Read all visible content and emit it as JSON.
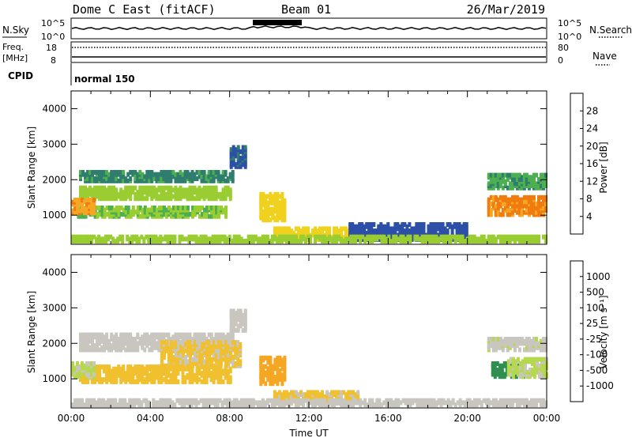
{
  "header": {
    "station": "Dome C East (fitACF)",
    "beam": "Beam 01",
    "date": "26/Mar/2019"
  },
  "top_panels": {
    "nsky_label": "N.Sky",
    "nsky_ticks": [
      "10^5",
      "10^0"
    ],
    "nsearch_label": "N.Search",
    "nsearch_ticks": [
      "10^5",
      "10^0"
    ],
    "freq_label_1": "Freq.",
    "freq_label_2": "[MHz]",
    "freq_ticks": [
      "18",
      "8"
    ],
    "nave_label": "Nave",
    "nave_ticks": [
      "80",
      "0"
    ],
    "cpid_label": "CPID",
    "cpid_value": "normal 150"
  },
  "colors": {
    "power_scale": [
      "#0a14e6",
      "#2c4fa8",
      "#2e7d6e",
      "#4caf50",
      "#9acd32",
      "#f0d21e",
      "#f5a623",
      "#f07b0f",
      "#e8401a",
      "#e3000b"
    ],
    "velocity_scale": [
      "#e3000b",
      "#e8401a",
      "#f07b0f",
      "#f5a623",
      "#f0c02e",
      "#c9c6bf",
      "#b5d84e",
      "#6cc24a",
      "#2e8f4e",
      "#2c5faa",
      "#1a2bd0"
    ]
  },
  "chart_data": [
    {
      "type": "heatmap",
      "name": "power",
      "xlabel": "",
      "ylabel": "Slant Range [km]",
      "xlim": [
        0,
        24
      ],
      "ylim": [
        180,
        4500
      ],
      "yticks": [
        "1000",
        "2000",
        "3000",
        "4000"
      ],
      "colorbar_label": "Power [dB]",
      "colorbar_ticks": [
        "4",
        "8",
        "12",
        "16",
        "20",
        "24",
        "28"
      ],
      "colorbar_range": [
        0,
        32
      ],
      "features": [
        {
          "t0": 0.4,
          "t1": 8.2,
          "r0": 1900,
          "r1": 2200,
          "v": 9
        },
        {
          "t0": 0.4,
          "t1": 8.0,
          "r0": 1400,
          "r1": 1750,
          "v": 14
        },
        {
          "t0": 0.3,
          "t1": 7.8,
          "r0": 900,
          "r1": 1200,
          "v": 13
        },
        {
          "t0": 0.0,
          "t1": 1.2,
          "r0": 1000,
          "r1": 1400,
          "v": 22
        },
        {
          "t0": 8.0,
          "t1": 8.8,
          "r0": 2300,
          "r1": 2900,
          "v": 6
        },
        {
          "t0": 9.5,
          "t1": 10.8,
          "r0": 800,
          "r1": 1550,
          "v": 18
        },
        {
          "t0": 10.2,
          "t1": 14.5,
          "r0": 250,
          "r1": 600,
          "v": 17
        },
        {
          "t0": 14.0,
          "t1": 20.0,
          "r0": 250,
          "r1": 700,
          "v": 5
        },
        {
          "t0": 21.0,
          "t1": 24.0,
          "r0": 1700,
          "r1": 2100,
          "v": 10
        },
        {
          "t0": 21.0,
          "t1": 24.0,
          "r0": 950,
          "r1": 1450,
          "v": 23
        },
        {
          "t0": 0.0,
          "t1": 24.0,
          "r0": 200,
          "r1": 330,
          "v": 15
        }
      ]
    },
    {
      "type": "heatmap",
      "name": "velocity",
      "xlabel": "Time UT",
      "ylabel": "Slant Range [km]",
      "xlim": [
        0,
        24
      ],
      "ylim": [
        180,
        4500
      ],
      "xticks": [
        "00:00",
        "04:00",
        "08:00",
        "12:00",
        "16:00",
        "20:00",
        "00:00"
      ],
      "yticks": [
        "1000",
        "2000",
        "3000",
        "4000"
      ],
      "colorbar_label": "Velocity [m s⁻¹]",
      "colorbar_ticks": [
        "-1000",
        "-500",
        "-100",
        "-25",
        "25",
        "100",
        "500",
        "1000"
      ],
      "colorbar_range": [
        -1250,
        1250
      ],
      "features": [
        {
          "t0": 0.4,
          "t1": 8.2,
          "r0": 1750,
          "r1": 2200,
          "v": 0
        },
        {
          "t0": 4.5,
          "t1": 8.5,
          "r0": 1300,
          "r1": 2000,
          "v": -150
        },
        {
          "t0": 0.4,
          "t1": 8.0,
          "r0": 850,
          "r1": 1300,
          "v": -200
        },
        {
          "t0": 0.0,
          "t1": 1.2,
          "r0": 1000,
          "r1": 1400,
          "v": 150
        },
        {
          "t0": 8.0,
          "t1": 8.8,
          "r0": 2300,
          "r1": 2900,
          "v": 0
        },
        {
          "t0": 9.5,
          "t1": 10.8,
          "r0": 800,
          "r1": 1550,
          "v": -450
        },
        {
          "t0": 10.2,
          "t1": 14.5,
          "r0": 250,
          "r1": 600,
          "v": -150
        },
        {
          "t0": 21.0,
          "t1": 24.0,
          "r0": 1750,
          "r1": 2100,
          "v": 60
        },
        {
          "t0": 21.2,
          "t1": 22.8,
          "r0": 1000,
          "r1": 1400,
          "v": 700
        },
        {
          "t0": 22.0,
          "t1": 24.0,
          "r0": 1000,
          "r1": 1500,
          "v": 150
        },
        {
          "t0": 0.0,
          "t1": 24.0,
          "r0": 200,
          "r1": 330,
          "v": 0
        }
      ]
    }
  ]
}
